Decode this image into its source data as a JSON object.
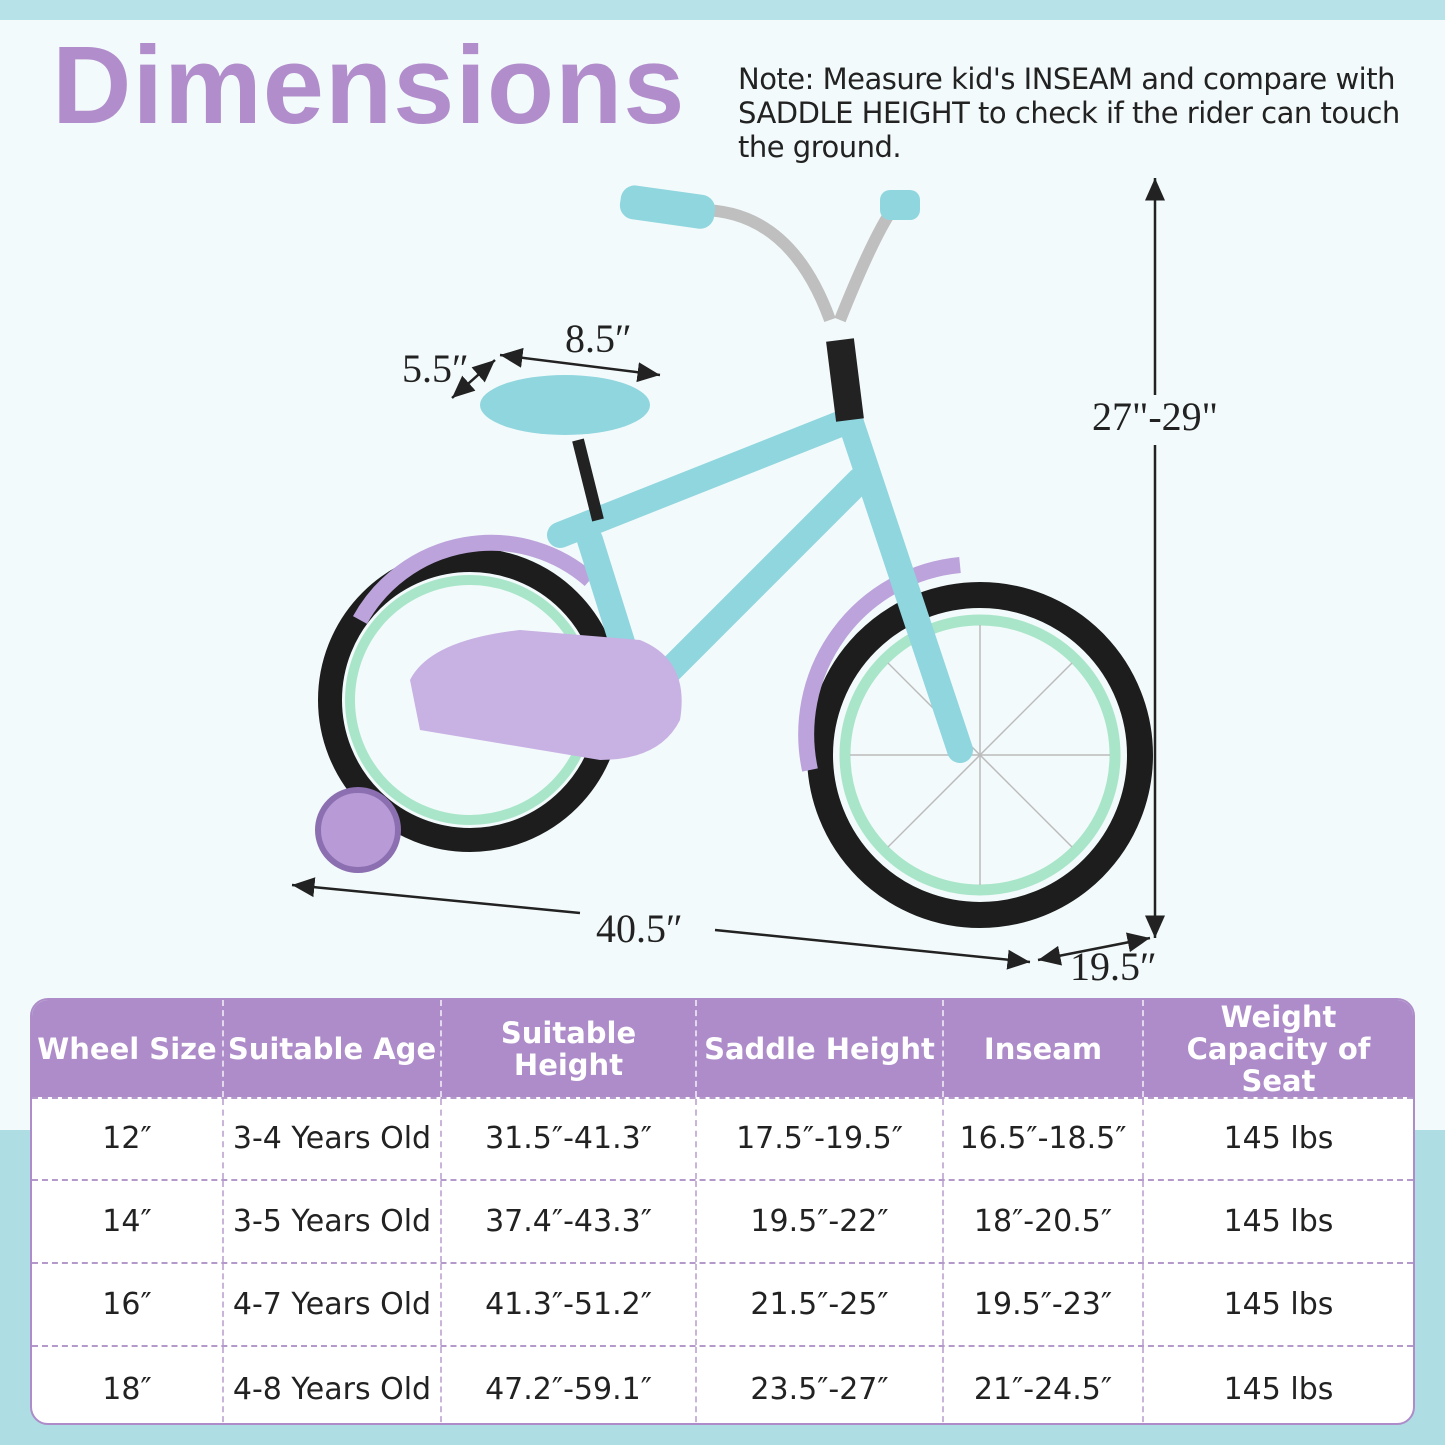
{
  "title": "Dimensions",
  "note": "Note: Measure kid's INSEAM and compare with SADDLE HEIGHT to check if the rider can touch the ground.",
  "dimensions": {
    "seat_width": "5.5″",
    "seat_length": "8.5″",
    "height": "27\"-29\"",
    "length": "40.5″",
    "width": "19.5″"
  },
  "colors": {
    "accent": "#ad8cc9",
    "band": "#b6e2e8",
    "frame": "#8fd6de"
  },
  "table": {
    "headers": [
      "Wheel Size",
      "Suitable Age",
      "Suitable Height",
      "Saddle Height",
      "Inseam",
      "Weight Capacity of Seat"
    ],
    "rows": [
      [
        "12″",
        "3-4 Years Old",
        "31.5″-41.3″",
        "17.5″-19.5″",
        "16.5″-18.5″",
        "145 lbs"
      ],
      [
        "14″",
        "3-5 Years Old",
        "37.4″-43.3″",
        "19.5″-22″",
        "18″-20.5″",
        "145 lbs"
      ],
      [
        "16″",
        "4-7 Years Old",
        "41.3″-51.2″",
        "21.5″-25″",
        "19.5″-23″",
        "145 lbs"
      ],
      [
        "18″",
        "4-8 Years Old",
        "47.2″-59.1″",
        "23.5″-27″",
        "21″-24.5″",
        "145 lbs"
      ]
    ]
  }
}
